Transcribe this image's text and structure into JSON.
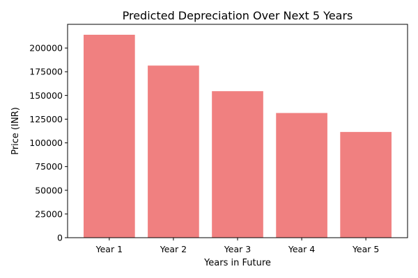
{
  "chart_data": {
    "type": "bar",
    "title": "Predicted Depreciation Over Next 5 Years",
    "xlabel": "Years in Future",
    "ylabel": "Price (INR)",
    "categories": [
      "Year 1",
      "Year 2",
      "Year 3",
      "Year 4",
      "Year 5"
    ],
    "values": [
      214000,
      181500,
      154500,
      131500,
      111500
    ],
    "ylim": [
      0,
      225000
    ],
    "yticks": [
      0,
      25000,
      50000,
      75000,
      100000,
      125000,
      150000,
      175000,
      200000
    ],
    "ytick_labels": [
      "0",
      "25000",
      "50000",
      "75000",
      "100000",
      "125000",
      "150000",
      "175000",
      "200000"
    ],
    "grid": false,
    "bar_color": "#f08080"
  }
}
